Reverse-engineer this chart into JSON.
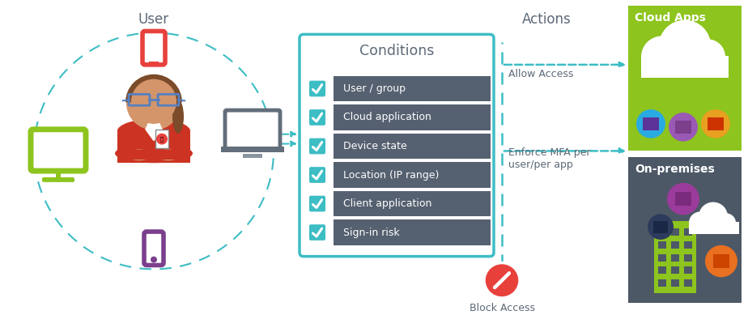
{
  "title": "User",
  "conditions_title": "Conditions",
  "conditions_items": [
    "User / group",
    "Cloud application",
    "Device state",
    "Location (IP range)",
    "Client application",
    "Sign-in risk"
  ],
  "actions_title": "Actions",
  "allow_access_label": "Allow Access",
  "enforce_mfa_label": "Enforce MFA per\nuser/per app",
  "block_access_label": "Block Access",
  "cloud_apps_label": "Cloud Apps",
  "on_premises_label": "On-premises",
  "colors": {
    "teal": "#3DBDC4",
    "dark_gray": "#556070",
    "white": "#ffffff",
    "red_action": "#E8413C",
    "green_monitor": "#8DC41E",
    "red_tablet": "#E8413C",
    "purple_phone": "#7B3F8C",
    "teal_box_border": "#3DBDC4",
    "cloud_bg": "#8DC41E",
    "onprem_bg": "#4D5867",
    "text_dark": "#5C6977",
    "skin": "#D4956A",
    "hair": "#7B4B2A",
    "jacket": "#CC3322",
    "laptop_gray": "#636E7B"
  }
}
